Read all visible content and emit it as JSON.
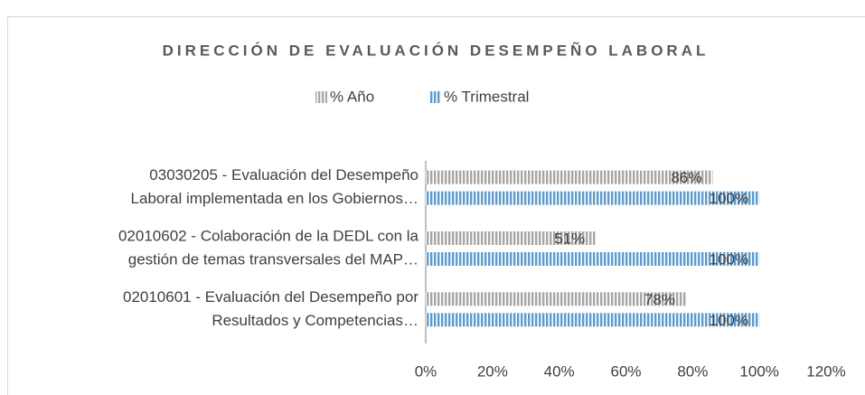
{
  "chart_data": {
    "type": "bar",
    "orientation": "horizontal",
    "title": "DIRECCIÓN DE EVALUACIÓN DESEMPEÑO LABORAL",
    "categories": [
      [
        "03030205 - Evaluación del Desempeño",
        "Laboral implementada en los Gobiernos…"
      ],
      [
        "02010602 - Colaboración de la DEDL con la",
        "gestión de temas transversales del MAP…"
      ],
      [
        "02010601 -  Evaluación del Desempeño por",
        "Resultados y Competencias…"
      ]
    ],
    "series": [
      {
        "name": "% Año",
        "color": "#a6a6a6",
        "values": [
          86,
          51,
          78
        ],
        "value_labels": [
          "86%",
          "51%",
          "78%"
        ]
      },
      {
        "name": "% Trimestral",
        "color": "#5b9bd5",
        "values": [
          100,
          100,
          100
        ],
        "value_labels": [
          "100%",
          "100%",
          "100%"
        ]
      }
    ],
    "xlim": [
      0,
      120
    ],
    "xticks": [
      {
        "value": 0,
        "label": "0%"
      },
      {
        "value": 20,
        "label": "20%"
      },
      {
        "value": 40,
        "label": "40%"
      },
      {
        "value": 60,
        "label": "60%"
      },
      {
        "value": 80,
        "label": "80%"
      },
      {
        "value": 100,
        "label": "100%"
      },
      {
        "value": 120,
        "label": "120%"
      }
    ],
    "legend": "top"
  }
}
